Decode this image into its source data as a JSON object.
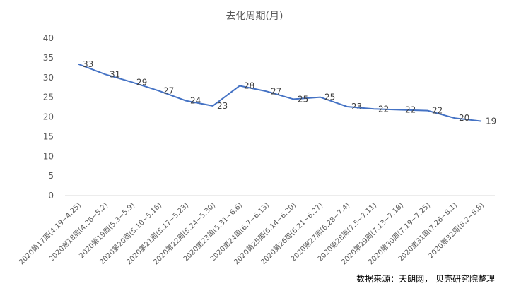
{
  "chart_data": {
    "type": "line",
    "title": "去化周期(月)",
    "xlabel": "",
    "ylabel": "",
    "ylim": [
      0,
      40
    ],
    "yticks": [
      0,
      5,
      10,
      15,
      20,
      25,
      30,
      35,
      40
    ],
    "grid": false,
    "categories": [
      "2020第17周(4.19~4.25)",
      "2020第18周(4.26~5.2)",
      "2020第19周(5.3~5.9)",
      "2020第20周(5.10~5.16)",
      "2020第21周(5.17~5.23)",
      "2020第22周(5.24~5.30)",
      "2020第23周(5.31~6.6)",
      "2020第24周(6.7~6.13)",
      "2020第25周(6.14~6.20)",
      "2020第26周(6.21~6.27)",
      "2020第27周(6.28~7.4)",
      "2020第28周(7.5~7.11)",
      "2020第29周(7.13~7.18)",
      "2020第30周(7.19~7.25)",
      "2020第31周(7.26~8.1)",
      "2020第32周(8.2~8.8)"
    ],
    "series": [
      {
        "values": [
          33.4,
          30.8,
          28.8,
          26.6,
          24.1,
          22.8,
          27.9,
          26.5,
          24.5,
          25.0,
          22.6,
          22.0,
          21.8,
          21.6,
          19.7,
          18.9
        ],
        "labels": [
          "33",
          "31",
          "29",
          "27",
          "24",
          "23",
          "28",
          "27",
          "25",
          "25",
          "23",
          "22",
          "22",
          "22",
          "20",
          "19"
        ],
        "color": "#4472C4"
      }
    ]
  },
  "source_note": "数据来源：天朗网， 贝壳研究院整理"
}
